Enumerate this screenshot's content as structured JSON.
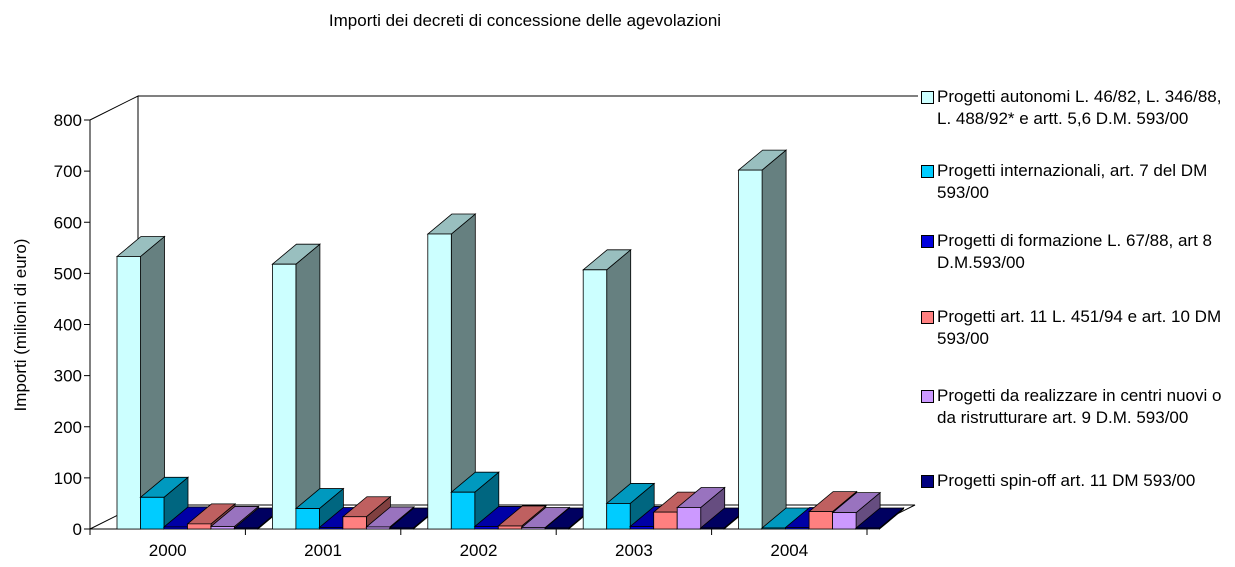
{
  "chart_data": {
    "type": "bar3d",
    "title": "Importi dei decreti di concessione delle agevolazioni",
    "y_label": "Importi (milioni di euro)",
    "categories": [
      "2000",
      "2001",
      "2002",
      "2003",
      "2004"
    ],
    "series": [
      {
        "name": "Progetti autonomi L. 46/82,  L. 346/88, L. 488/92* e artt. 5,6 D.M. 593/00",
        "color": "#ccffff",
        "values": [
          533,
          518,
          577,
          507,
          702
        ]
      },
      {
        "name": "Progetti internazionali, art. 7 del DM 593/00",
        "color": "#00ccff",
        "values": [
          62,
          40,
          72,
          50,
          2
        ]
      },
      {
        "name": "Progetti di formazione L. 67/88, art 8 D.M.593/00",
        "color": "#0000dd",
        "values": [
          4,
          3,
          5,
          5,
          3
        ]
      },
      {
        "name": "Progetti art. 11 L. 451/94 e art. 10 DM 593/00",
        "color": "#ff8080",
        "values": [
          10,
          24,
          6,
          33,
          34
        ]
      },
      {
        "name": "Progetti da realizzare in centri nuovi o da ristrutturare art. 9 D.M. 593/00",
        "color": "#cc99ff",
        "values": [
          5,
          4,
          3,
          42,
          32
        ]
      },
      {
        "name": "Progetti spin-off art. 11 DM 593/00",
        "color": "#000080",
        "values": [
          2,
          2,
          2,
          2,
          2
        ]
      }
    ],
    "ylim": [
      0,
      800
    ],
    "yticks": [
      0,
      100,
      200,
      300,
      400,
      500,
      600,
      700,
      800
    ]
  }
}
